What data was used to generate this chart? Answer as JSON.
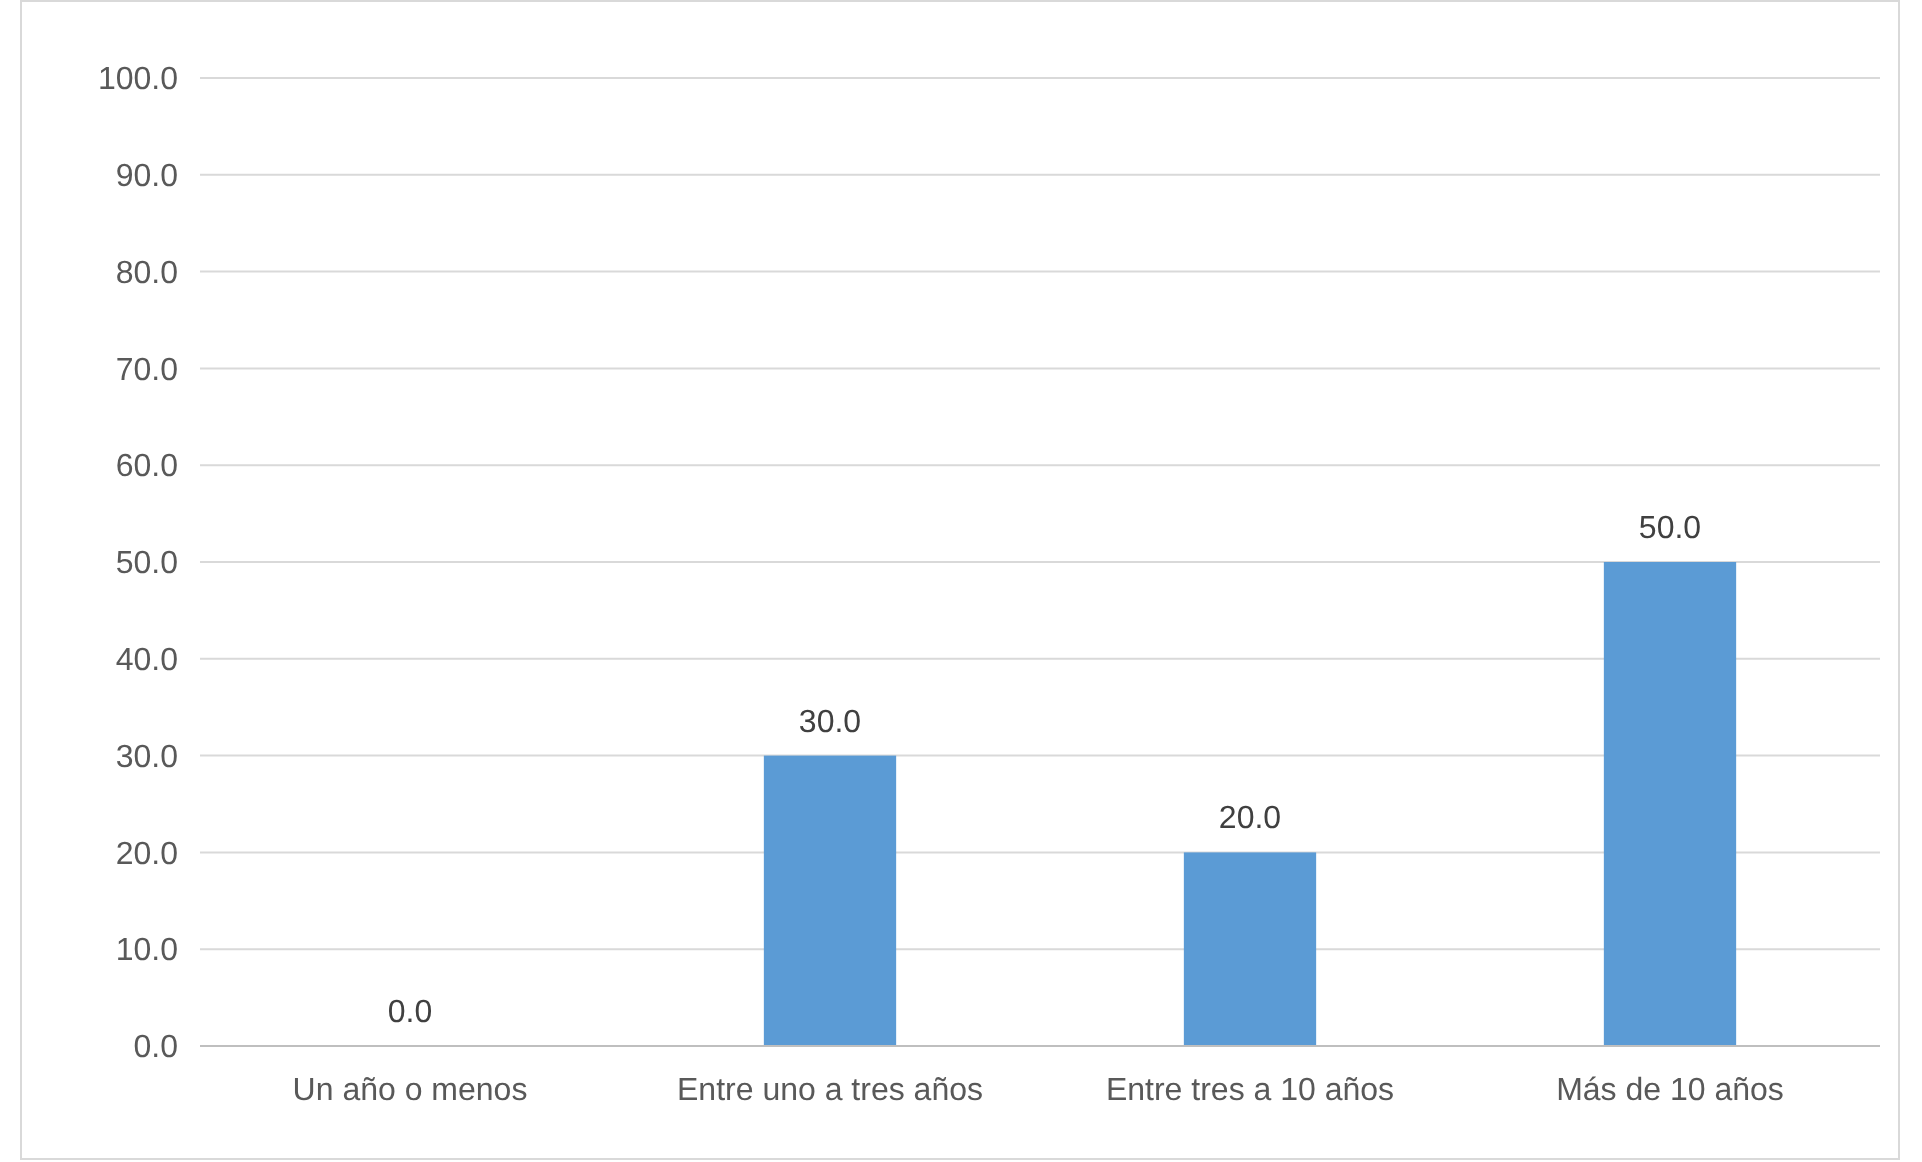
{
  "chart_data": {
    "type": "bar",
    "categories": [
      "Un año o menos",
      "Entre uno a tres años",
      "Entre tres a 10 años",
      "Más de 10 años"
    ],
    "values": [
      0,
      30,
      20,
      50
    ],
    "color": "#5b9bd5",
    "value_labels": [
      "0.0",
      "30.0",
      "20.0",
      "50.0"
    ],
    "ylim": [
      0,
      100
    ],
    "yticks": [
      {
        "value": 0,
        "label": "0.0"
      },
      {
        "value": 10,
        "label": "10.0"
      },
      {
        "value": 20,
        "label": "20.0"
      },
      {
        "value": 30,
        "label": "30.0"
      },
      {
        "value": 40,
        "label": "40.0"
      },
      {
        "value": 50,
        "label": "50.0"
      },
      {
        "value": 60,
        "label": "60.0"
      },
      {
        "value": 70,
        "label": "70.0"
      },
      {
        "value": 80,
        "label": "80.0"
      },
      {
        "value": 90,
        "label": "90.0"
      },
      {
        "value": 100,
        "label": "100.0"
      }
    ],
    "grid": "y"
  }
}
